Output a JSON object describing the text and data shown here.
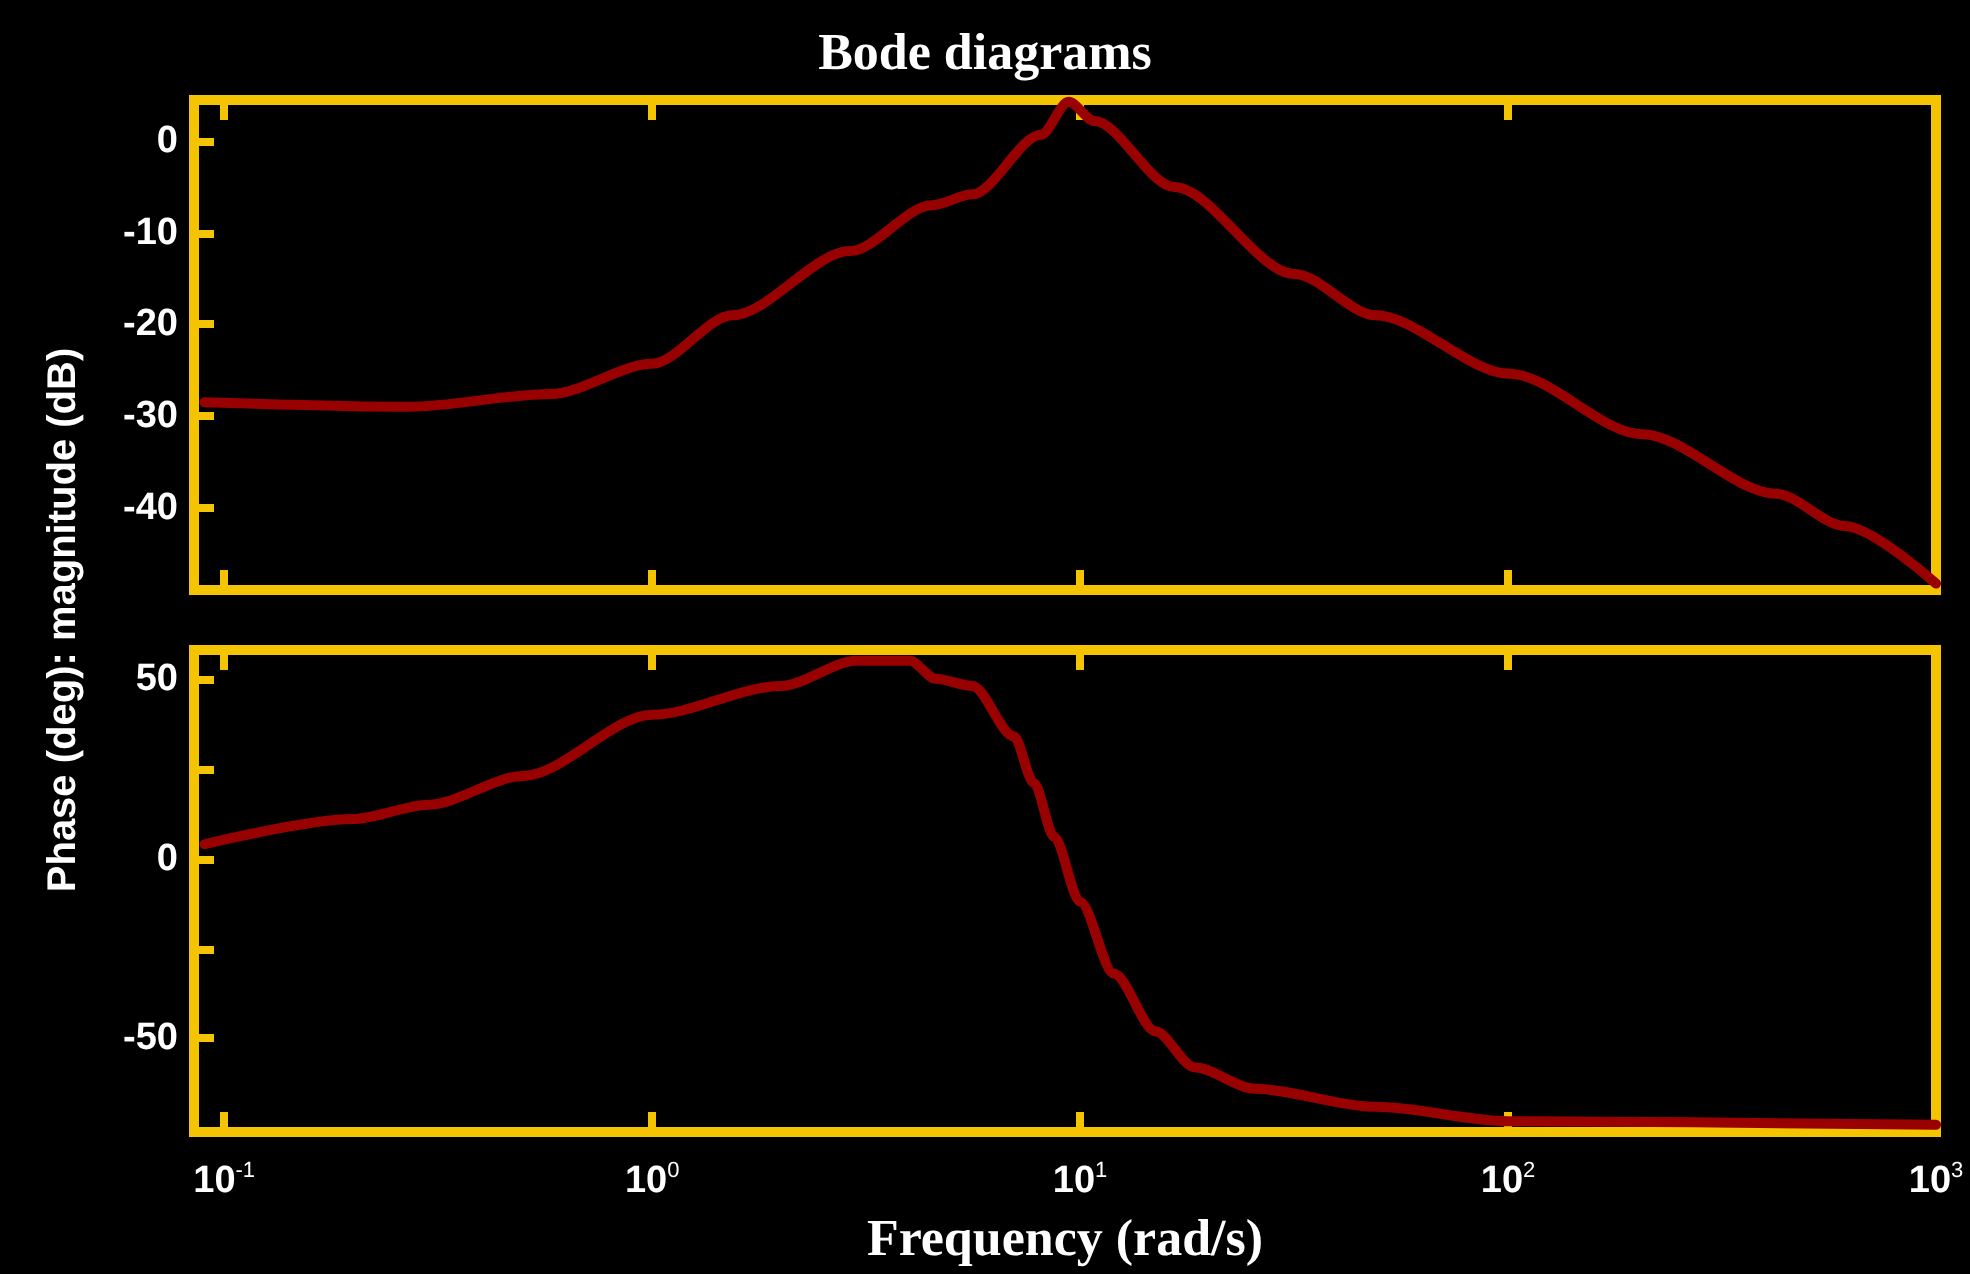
{
  "chart_data": [
    {
      "type": "line",
      "title": "Bode diagrams",
      "ylabel": "Phase (deg): magnitude (dB)",
      "log": "x",
      "grid": false,
      "tick_labels": "y",
      "xlim": [
        0.085,
        1000
      ],
      "xticks": [
        {
          "value": 0.1,
          "label": null
        },
        {
          "value": 1,
          "label": null
        },
        {
          "value": 10,
          "label": null
        },
        {
          "value": 100,
          "label": null
        },
        {
          "value": 1000,
          "label": null
        }
      ],
      "ylim": [
        -49,
        4.5
      ],
      "yticks": [
        0,
        -10,
        -20,
        -30,
        -40
      ],
      "series": [
        {
          "color": "#990000",
          "x": [
            0.09,
            0.27,
            0.58,
            1,
            1.54,
            2.9,
            4.5,
            5.6,
            8.1,
            9.4,
            10.8,
            16.6,
            31.7,
            49,
            101,
            206,
            424,
            611,
            1000
          ],
          "values": [
            -28.5,
            -29,
            -27.6,
            -24.3,
            -19,
            -12,
            -7,
            -5.8,
            0.7,
            4.3,
            2.2,
            -5,
            -14.5,
            -19,
            -25.4,
            -32,
            -38.5,
            -42,
            -48.3
          ]
        }
      ]
    },
    {
      "type": "line",
      "xlabel": "Frequency (rad/s)",
      "log": "x",
      "grid": false,
      "xlim": [
        0.085,
        1000
      ],
      "xticks": [
        {
          "value": 0.1,
          "label": "10$^{-1}$"
        },
        {
          "value": 1,
          "label": "10$^{0}$"
        },
        {
          "value": 10,
          "label": "10$^{1}$"
        },
        {
          "value": 100,
          "label": "10$^{2}$"
        },
        {
          "value": 1000,
          "label": "10$^{3}$"
        }
      ],
      "ylim": [
        -76,
        58
      ],
      "yticks": [
        50,
        {
          "value": 25,
          "label": null
        },
        0,
        {
          "value": -25,
          "label": null
        },
        -50
      ],
      "series": [
        {
          "color": "#990000",
          "x": [
            0.09,
            0.2,
            0.3,
            0.5,
            1,
            2,
            3,
            4,
            4.6,
            5.6,
            7,
            7.8,
            8.7,
            10,
            12,
            15,
            18.5,
            25.6,
            49,
            100,
            1000
          ],
          "values": [
            4,
            11,
            15,
            23,
            40,
            48,
            55,
            55,
            50,
            48,
            34,
            21,
            6,
            -12,
            -32,
            -48,
            -58,
            -64,
            -69,
            -73,
            -74
          ]
        }
      ]
    }
  ]
}
